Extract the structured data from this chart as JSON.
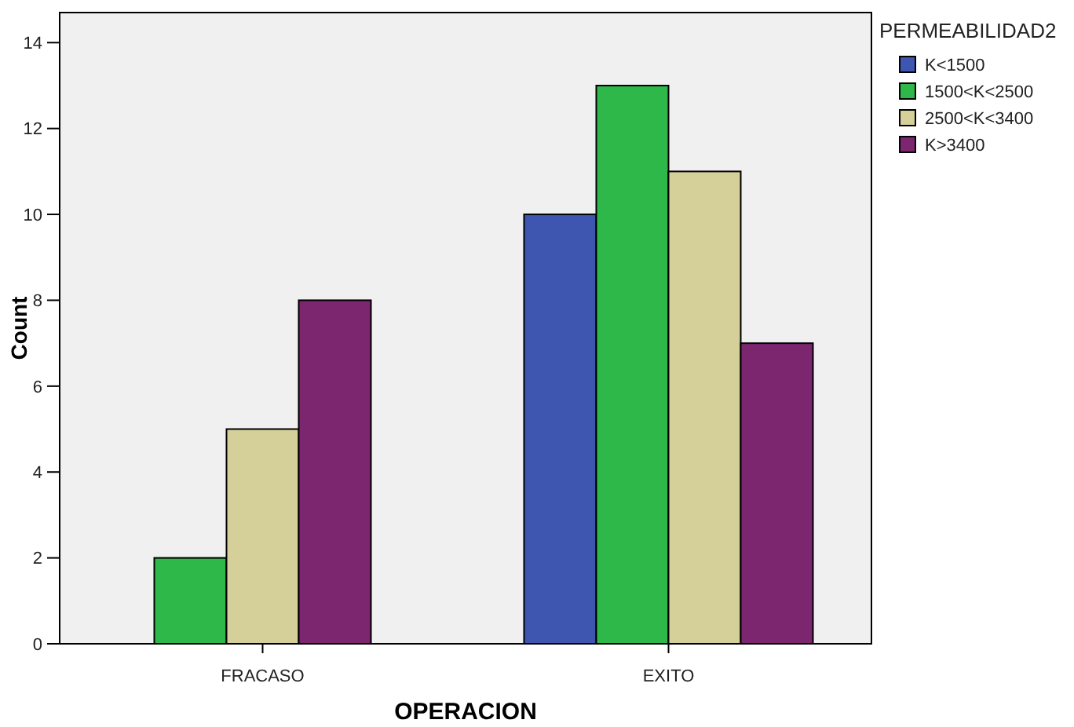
{
  "chart_data": {
    "type": "bar",
    "xlabel": "OPERACION",
    "ylabel": "Count",
    "legend_title": "PERMEABILIDAD2",
    "categories": [
      "FRACASO",
      "EXITO"
    ],
    "series": [
      {
        "name": "K<1500",
        "color": "#3f56b0",
        "values": [
          null,
          10
        ]
      },
      {
        "name": "1500<K<2500",
        "color": "#2eb84a",
        "values": [
          2,
          13
        ]
      },
      {
        "name": "2500<K<3400",
        "color": "#d5d09a",
        "values": [
          5,
          11
        ]
      },
      {
        "name": "K>3400",
        "color": "#7c2670",
        "values": [
          8,
          7
        ]
      }
    ],
    "ylim": [
      0,
      14.7
    ],
    "yticks": [
      0,
      2,
      4,
      6,
      8,
      10,
      12,
      14
    ],
    "grid": false,
    "legend": "top right"
  }
}
